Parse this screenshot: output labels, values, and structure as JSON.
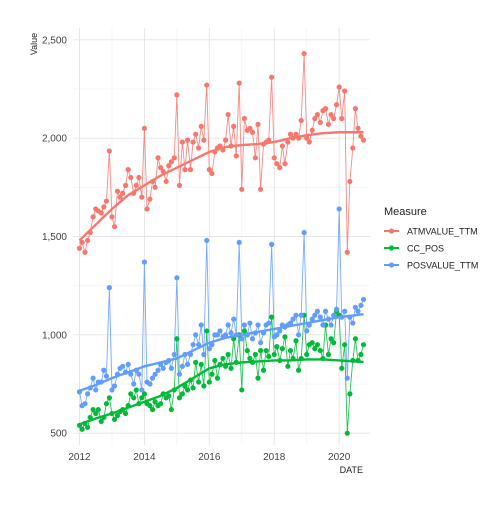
{
  "chart_data": {
    "type": "line",
    "title": "",
    "xlabel": "DATE",
    "ylabel": "Value",
    "xlim": [
      2011.8,
      2020.95
    ],
    "ylim": [
      440,
      2560
    ],
    "x_ticks": [
      2012,
      2014,
      2016,
      2018,
      2020
    ],
    "y_ticks": [
      500,
      1000,
      1500,
      2000,
      2500
    ],
    "y_tick_labels": [
      "500",
      "1,000",
      "1,500",
      "2,000",
      "2,500"
    ],
    "grid": true,
    "legend": {
      "title": "Measure",
      "position": "right"
    },
    "series": [
      {
        "name": "ATMVALUE_TTM",
        "color": "#F8766D",
        "x": [
          2012.0,
          2012.08,
          2012.17,
          2012.25,
          2012.33,
          2012.42,
          2012.5,
          2012.58,
          2012.67,
          2012.75,
          2012.83,
          2012.92,
          2013.0,
          2013.08,
          2013.17,
          2013.25,
          2013.33,
          2013.42,
          2013.5,
          2013.58,
          2013.67,
          2013.75,
          2013.83,
          2013.92,
          2014.0,
          2014.08,
          2014.17,
          2014.25,
          2014.33,
          2014.42,
          2014.5,
          2014.58,
          2014.67,
          2014.75,
          2014.83,
          2014.92,
          2015.0,
          2015.08,
          2015.17,
          2015.25,
          2015.33,
          2015.42,
          2015.5,
          2015.58,
          2015.67,
          2015.75,
          2015.83,
          2015.92,
          2016.0,
          2016.08,
          2016.17,
          2016.25,
          2016.33,
          2016.42,
          2016.5,
          2016.58,
          2016.67,
          2016.75,
          2016.83,
          2016.92,
          2017.0,
          2017.08,
          2017.17,
          2017.25,
          2017.33,
          2017.42,
          2017.5,
          2017.58,
          2017.67,
          2017.75,
          2017.83,
          2017.92,
          2018.0,
          2018.08,
          2018.17,
          2018.25,
          2018.33,
          2018.42,
          2018.5,
          2018.58,
          2018.67,
          2018.75,
          2018.83,
          2018.92,
          2019.0,
          2019.08,
          2019.17,
          2019.25,
          2019.33,
          2019.42,
          2019.5,
          2019.58,
          2019.67,
          2019.75,
          2019.83,
          2019.92,
          2020.0,
          2020.08,
          2020.17,
          2020.25,
          2020.33,
          2020.42,
          2020.5,
          2020.58,
          2020.67,
          2020.75
        ],
        "values": [
          1440,
          1470,
          1420,
          1480,
          1520,
          1600,
          1640,
          1630,
          1620,
          1650,
          1680,
          1935,
          1600,
          1550,
          1730,
          1700,
          1720,
          1760,
          1840,
          1800,
          1720,
          1760,
          1800,
          1700,
          2050,
          1640,
          1690,
          1780,
          1750,
          1900,
          1850,
          1830,
          1780,
          1860,
          1880,
          1900,
          2220,
          1760,
          1980,
          1840,
          1990,
          1840,
          1980,
          2020,
          1950,
          2060,
          1990,
          2270,
          1840,
          1820,
          1930,
          1950,
          1960,
          1940,
          1990,
          2120,
          1960,
          2060,
          1910,
          2280,
          1740,
          2100,
          2040,
          2050,
          2030,
          1900,
          2070,
          1740,
          1970,
          1980,
          1990,
          2310,
          1900,
          1870,
          1850,
          1960,
          1870,
          1980,
          2020,
          2000,
          2020,
          2000,
          2090,
          2430,
          2000,
          1980,
          2040,
          2100,
          2120,
          2080,
          2140,
          2150,
          2070,
          2120,
          2100,
          2170,
          2260,
          2100,
          2240,
          1420,
          1780,
          1950,
          2150,
          2050,
          2010,
          1990
        ]
      },
      {
        "name": "CC_POS",
        "color": "#00BA38",
        "x": [
          2012.0,
          2012.08,
          2012.17,
          2012.25,
          2012.33,
          2012.42,
          2012.5,
          2012.58,
          2012.67,
          2012.75,
          2012.83,
          2012.92,
          2013.0,
          2013.08,
          2013.17,
          2013.25,
          2013.33,
          2013.42,
          2013.5,
          2013.58,
          2013.67,
          2013.75,
          2013.83,
          2013.92,
          2014.0,
          2014.08,
          2014.17,
          2014.25,
          2014.33,
          2014.42,
          2014.5,
          2014.58,
          2014.67,
          2014.75,
          2014.83,
          2014.92,
          2015.0,
          2015.08,
          2015.17,
          2015.25,
          2015.33,
          2015.42,
          2015.5,
          2015.58,
          2015.67,
          2015.75,
          2015.83,
          2015.92,
          2016.0,
          2016.08,
          2016.17,
          2016.25,
          2016.33,
          2016.42,
          2016.5,
          2016.58,
          2016.67,
          2016.75,
          2016.83,
          2016.92,
          2017.0,
          2017.08,
          2017.17,
          2017.25,
          2017.33,
          2017.42,
          2017.5,
          2017.58,
          2017.67,
          2017.75,
          2017.83,
          2017.92,
          2018.0,
          2018.08,
          2018.17,
          2018.25,
          2018.33,
          2018.42,
          2018.5,
          2018.58,
          2018.67,
          2018.75,
          2018.83,
          2018.92,
          2019.0,
          2019.08,
          2019.17,
          2019.25,
          2019.33,
          2019.42,
          2019.5,
          2019.58,
          2019.67,
          2019.75,
          2019.83,
          2019.92,
          2020.0,
          2020.08,
          2020.17,
          2020.25,
          2020.33,
          2020.42,
          2020.5,
          2020.58,
          2020.67,
          2020.75
        ],
        "values": [
          540,
          520,
          550,
          530,
          580,
          620,
          600,
          620,
          560,
          580,
          650,
          680,
          600,
          570,
          590,
          610,
          620,
          600,
          640,
          700,
          680,
          720,
          650,
          680,
          700,
          650,
          640,
          620,
          660,
          640,
          650,
          700,
          680,
          690,
          620,
          720,
          980,
          680,
          700,
          740,
          720,
          770,
          730,
          860,
          760,
          850,
          740,
          1020,
          760,
          800,
          870,
          780,
          850,
          880,
          840,
          900,
          830,
          980,
          860,
          1000,
          720,
          1020,
          920,
          880,
          860,
          900,
          780,
          920,
          820,
          920,
          890,
          1090,
          900,
          940,
          870,
          930,
          990,
          840,
          920,
          880,
          970,
          820,
          880,
          1100,
          900,
          950,
          960,
          930,
          950,
          920,
          880,
          1050,
          900,
          980,
          960,
          1120,
          1100,
          830,
          950,
          500,
          700,
          870,
          980,
          870,
          900,
          950
        ]
      },
      {
        "name": "POSVALUE_TTM",
        "color": "#619CFF",
        "x": [
          2012.0,
          2012.08,
          2012.17,
          2012.25,
          2012.33,
          2012.42,
          2012.5,
          2012.58,
          2012.67,
          2012.75,
          2012.83,
          2012.92,
          2013.0,
          2013.08,
          2013.17,
          2013.25,
          2013.33,
          2013.42,
          2013.5,
          2013.58,
          2013.67,
          2013.75,
          2013.83,
          2013.92,
          2014.0,
          2014.08,
          2014.17,
          2014.25,
          2014.33,
          2014.42,
          2014.5,
          2014.58,
          2014.67,
          2014.75,
          2014.83,
          2014.92,
          2015.0,
          2015.08,
          2015.17,
          2015.25,
          2015.33,
          2015.42,
          2015.5,
          2015.58,
          2015.67,
          2015.75,
          2015.83,
          2015.92,
          2016.0,
          2016.08,
          2016.17,
          2016.25,
          2016.33,
          2016.42,
          2016.5,
          2016.58,
          2016.67,
          2016.75,
          2016.83,
          2016.92,
          2017.0,
          2017.08,
          2017.17,
          2017.25,
          2017.33,
          2017.42,
          2017.5,
          2017.58,
          2017.67,
          2017.75,
          2017.83,
          2017.92,
          2018.0,
          2018.08,
          2018.17,
          2018.25,
          2018.33,
          2018.42,
          2018.5,
          2018.58,
          2018.67,
          2018.75,
          2018.83,
          2018.92,
          2019.0,
          2019.08,
          2019.17,
          2019.25,
          2019.33,
          2019.42,
          2019.5,
          2019.58,
          2019.67,
          2019.75,
          2019.83,
          2019.92,
          2020.0,
          2020.08,
          2020.17,
          2020.25,
          2020.33,
          2020.42,
          2020.5,
          2020.58,
          2020.67,
          2020.75
        ],
        "values": [
          710,
          640,
          650,
          700,
          730,
          780,
          720,
          760,
          760,
          820,
          790,
          1240,
          720,
          740,
          800,
          830,
          840,
          810,
          850,
          800,
          750,
          820,
          800,
          720,
          1370,
          760,
          750,
          780,
          800,
          820,
          850,
          830,
          860,
          870,
          830,
          900,
          1290,
          800,
          840,
          900,
          850,
          900,
          950,
          1000,
          950,
          1050,
          900,
          1480,
          930,
          950,
          1000,
          1000,
          1020,
          990,
          1000,
          1050,
          1010,
          1080,
          1000,
          1470,
          980,
          1050,
          1000,
          1060,
          980,
          1010,
          1050,
          960,
          1010,
          1050,
          1060,
          1460,
          990,
          1000,
          1020,
          1050,
          1040,
          1050,
          1060,
          1080,
          1100,
          1000,
          1100,
          1520,
          1020,
          1050,
          1080,
          1100,
          1120,
          1090,
          1050,
          1120,
          1080,
          1050,
          1100,
          1130,
          1640,
          1090,
          1120,
          780,
          1090,
          1060,
          1140,
          1120,
          1150,
          1180
        ]
      }
    ],
    "trend_lines": [
      {
        "series": "ATMVALUE_TTM",
        "color": "#F8766D",
        "x": [
          2012.0,
          2012.5,
          2013.0,
          2013.5,
          2014.0,
          2014.5,
          2015.0,
          2015.5,
          2016.0,
          2016.5,
          2017.0,
          2017.5,
          2018.0,
          2018.5,
          2019.0,
          2019.5,
          2020.0,
          2020.5,
          2020.75
        ],
        "values": [
          1480,
          1560,
          1640,
          1710,
          1760,
          1810,
          1850,
          1890,
          1930,
          1955,
          1965,
          1970,
          1980,
          2000,
          2015,
          2025,
          2030,
          2030,
          2030
        ]
      },
      {
        "series": "CC_POS",
        "color": "#00BA38",
        "x": [
          2012.0,
          2012.5,
          2013.0,
          2013.5,
          2014.0,
          2014.5,
          2015.0,
          2015.5,
          2016.0,
          2016.5,
          2017.0,
          2017.5,
          2018.0,
          2018.5,
          2019.0,
          2019.5,
          2020.0,
          2020.5,
          2020.75
        ],
        "values": [
          545,
          575,
          600,
          630,
          660,
          690,
          730,
          780,
          830,
          850,
          860,
          865,
          870,
          870,
          875,
          875,
          870,
          865,
          862
        ]
      },
      {
        "series": "POSVALUE_TTM",
        "color": "#619CFF",
        "x": [
          2012.0,
          2012.5,
          2013.0,
          2013.5,
          2014.0,
          2014.5,
          2015.0,
          2015.5,
          2016.0,
          2016.5,
          2017.0,
          2017.5,
          2018.0,
          2018.5,
          2019.0,
          2019.5,
          2020.0,
          2020.5,
          2020.75
        ],
        "values": [
          715,
          745,
          780,
          810,
          840,
          860,
          880,
          920,
          960,
          985,
          1000,
          1015,
          1030,
          1045,
          1060,
          1075,
          1090,
          1100,
          1105
        ]
      }
    ]
  }
}
